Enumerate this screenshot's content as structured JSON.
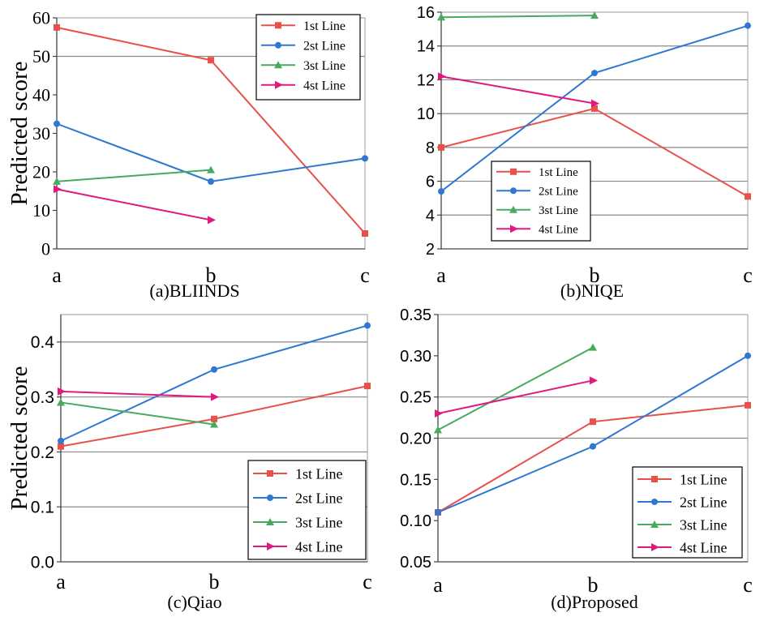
{
  "chart_data": [
    {
      "type": "line",
      "caption": "(a)BLIINDS",
      "ylabel": "Predicted score",
      "categories": [
        "a",
        "b",
        "c"
      ],
      "ylim": [
        0,
        60
      ],
      "yticks": [
        0,
        10,
        20,
        30,
        40,
        50,
        60
      ],
      "ytick_labels": [
        "0",
        "10",
        "20",
        "30",
        "40",
        "50",
        "60"
      ],
      "gridlines": [
        50
      ],
      "legend_position": "top-right",
      "series": [
        {
          "name": "1st Line",
          "color": "#e8504a",
          "marker": "square",
          "values": [
            57.5,
            49.0,
            4.0
          ]
        },
        {
          "name": "2st Line",
          "color": "#2f78d2",
          "marker": "circle",
          "values": [
            32.5,
            17.5,
            23.5
          ]
        },
        {
          "name": "3st Line",
          "color": "#46ab5e",
          "marker": "triangle",
          "values": [
            17.5,
            20.5,
            null
          ]
        },
        {
          "name": "4st Line",
          "color": "#e0197f",
          "marker": "arrow-right",
          "values": [
            15.5,
            7.5,
            null
          ]
        }
      ]
    },
    {
      "type": "line",
      "caption": "(b)NIQE",
      "ylabel": "",
      "categories": [
        "a",
        "b",
        "c"
      ],
      "ylim": [
        2,
        16
      ],
      "yticks": [
        2,
        4,
        6,
        8,
        10,
        12,
        14,
        16
      ],
      "ytick_labels": [
        "2",
        "4",
        "6",
        "8",
        "10",
        "12",
        "14",
        "16"
      ],
      "gridlines": [
        4,
        6,
        8,
        10,
        12,
        14
      ],
      "legend_position": "lower-left",
      "series": [
        {
          "name": "1st Line",
          "color": "#e8504a",
          "marker": "square",
          "values": [
            8.0,
            10.3,
            5.1
          ]
        },
        {
          "name": "2st Line",
          "color": "#2f78d2",
          "marker": "circle",
          "values": [
            5.4,
            12.4,
            15.2
          ]
        },
        {
          "name": "3st Line",
          "color": "#46ab5e",
          "marker": "triangle",
          "values": [
            15.7,
            15.8,
            null
          ]
        },
        {
          "name": "4st Line",
          "color": "#e0197f",
          "marker": "arrow-right",
          "values": [
            12.2,
            10.6,
            null
          ]
        }
      ]
    },
    {
      "type": "line",
      "caption": "(c)Qiao",
      "ylabel": "Predicted score",
      "categories": [
        "a",
        "b",
        "c"
      ],
      "ylim": [
        0,
        0.45
      ],
      "yticks": [
        0,
        0.1,
        0.2,
        0.3,
        0.4
      ],
      "ytick_labels": [
        "0.0",
        "0.1",
        "0.2",
        "0.3",
        "0.4"
      ],
      "gridlines": [
        0.1,
        0.2,
        0.3,
        0.4
      ],
      "legend_position": "bottom-right",
      "series": [
        {
          "name": "1st Line",
          "color": "#e8504a",
          "marker": "square",
          "values": [
            0.21,
            0.26,
            0.32
          ]
        },
        {
          "name": "2st Line",
          "color": "#2f78d2",
          "marker": "circle",
          "values": [
            0.22,
            0.35,
            0.43
          ]
        },
        {
          "name": "3st Line",
          "color": "#46ab5e",
          "marker": "triangle",
          "values": [
            0.29,
            0.25,
            null
          ]
        },
        {
          "name": "4st Line",
          "color": "#e0197f",
          "marker": "arrow-right",
          "values": [
            0.31,
            0.3,
            null
          ]
        }
      ]
    },
    {
      "type": "line",
      "caption": "(d)Proposed",
      "ylabel": "",
      "categories": [
        "a",
        "b",
        "c"
      ],
      "ylim": [
        0.05,
        0.35
      ],
      "yticks": [
        0.05,
        0.1,
        0.15,
        0.2,
        0.25,
        0.3,
        0.35
      ],
      "ytick_labels": [
        "0.05",
        "0.10",
        "0.15",
        "0.20",
        "0.25",
        "0.30",
        "0.35"
      ],
      "gridlines": [
        0.2,
        0.25
      ],
      "legend_position": "bottom-right",
      "series": [
        {
          "name": "1st Line",
          "color": "#e8504a",
          "marker": "square",
          "values": [
            0.11,
            0.22,
            0.24
          ]
        },
        {
          "name": "2st Line",
          "color": "#2f78d2",
          "marker": "circle",
          "values": [
            0.11,
            0.19,
            0.3
          ]
        },
        {
          "name": "3st Line",
          "color": "#46ab5e",
          "marker": "triangle",
          "values": [
            0.21,
            0.31,
            null
          ]
        },
        {
          "name": "4st Line",
          "color": "#e0197f",
          "marker": "arrow-right",
          "values": [
            0.23,
            0.27,
            null
          ]
        }
      ]
    }
  ]
}
